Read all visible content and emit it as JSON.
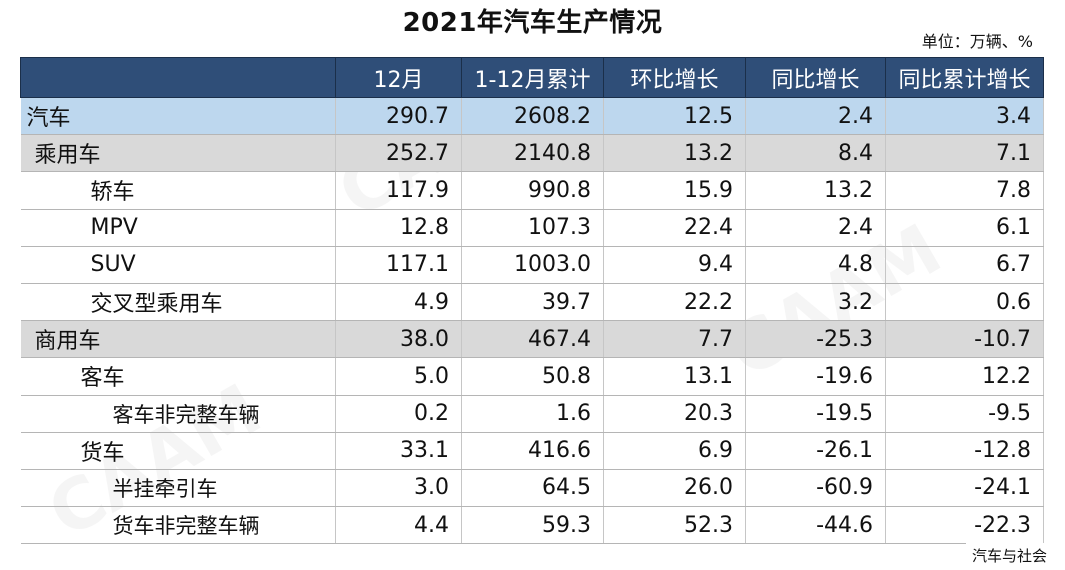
{
  "title": "2021年汽车生产情况",
  "unit": "单位：万辆、%",
  "source": "汽车与社会",
  "table": {
    "headers": [
      "",
      "12月",
      "1-12月累计",
      "环比增长",
      "同比增长",
      "同比累计增长"
    ],
    "rows": [
      {
        "name": "汽车",
        "level": 0,
        "values": [
          "290.7",
          "2608.2",
          "12.5",
          "2.4",
          "3.4"
        ]
      },
      {
        "name": "乘用车",
        "level": 1,
        "values": [
          "252.7",
          "2140.8",
          "13.2",
          "8.4",
          "7.1"
        ]
      },
      {
        "name": "轿车",
        "level": 2,
        "values": [
          "117.9",
          "990.8",
          "15.9",
          "13.2",
          "7.8"
        ]
      },
      {
        "name": "MPV",
        "level": 2,
        "values": [
          "12.8",
          "107.3",
          "22.4",
          "2.4",
          "6.1"
        ]
      },
      {
        "name": "SUV",
        "level": 2,
        "values": [
          "117.1",
          "1003.0",
          "9.4",
          "4.8",
          "6.7"
        ]
      },
      {
        "name": "交叉型乘用车",
        "level": 2,
        "values": [
          "4.9",
          "39.7",
          "22.2",
          "3.2",
          "0.6"
        ]
      },
      {
        "name": "商用车",
        "level": 1,
        "values": [
          "38.0",
          "467.4",
          "7.7",
          "-25.3",
          "-10.7"
        ]
      },
      {
        "name": "客车",
        "level": 3,
        "values": [
          "5.0",
          "50.8",
          "13.1",
          "-19.6",
          "12.2"
        ]
      },
      {
        "name": "客车非完整车辆",
        "level": 4,
        "values": [
          "0.2",
          "1.6",
          "20.3",
          "-19.5",
          "-9.5"
        ]
      },
      {
        "name": "货车",
        "level": 3,
        "values": [
          "33.1",
          "416.6",
          "6.9",
          "-26.1",
          "-12.8"
        ]
      },
      {
        "name": "半挂牵引车",
        "level": 5,
        "values": [
          "3.0",
          "64.5",
          "26.0",
          "-60.9",
          "-24.1"
        ]
      },
      {
        "name": "货车非完整车辆",
        "level": 4,
        "values": [
          "4.4",
          "59.3",
          "52.3",
          "-44.6",
          "-22.3"
        ]
      }
    ]
  }
}
